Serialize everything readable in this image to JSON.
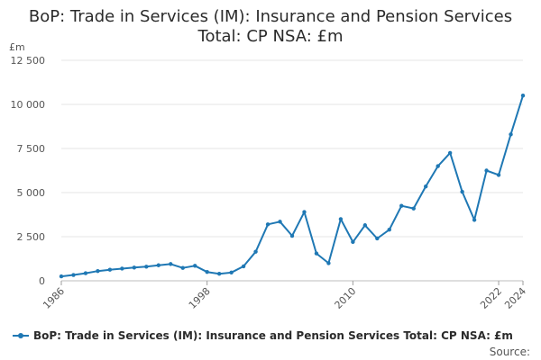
{
  "chart_data": {
    "type": "line",
    "title_lines": [
      "BoP: Trade in Services (IM): Insurance and Pension Services",
      "Total: CP NSA: £m"
    ],
    "y_unit": "£m",
    "ylim": [
      0,
      12500
    ],
    "y_ticks": [
      0,
      2500,
      5000,
      7500,
      10000,
      12500
    ],
    "y_tick_labels": [
      "0",
      "2 500",
      "5 000",
      "7 500",
      "10 000",
      "12 500"
    ],
    "xlim": [
      1986,
      2024
    ],
    "x_ticks": [
      1986,
      1998,
      2010,
      2022,
      2024
    ],
    "x_tick_labels": [
      "1986",
      "1998",
      "2010",
      "2022",
      "2024"
    ],
    "grid": "horizontal",
    "legend_position": "bottom-left",
    "series": [
      {
        "name": "BoP: Trade in Services (IM): Insurance and Pension Services Total: CP NSA: £m",
        "color": "#1f78b4",
        "x": [
          1986,
          1987,
          1988,
          1989,
          1990,
          1991,
          1992,
          1993,
          1994,
          1995,
          1996,
          1997,
          1998,
          1999,
          2000,
          2001,
          2002,
          2003,
          2004,
          2005,
          2006,
          2007,
          2008,
          2009,
          2010,
          2011,
          2012,
          2013,
          2014,
          2015,
          2016,
          2017,
          2018,
          2019,
          2020,
          2021,
          2022,
          2023,
          2024
        ],
        "values": [
          250,
          330,
          430,
          550,
          630,
          690,
          750,
          800,
          880,
          950,
          730,
          850,
          500,
          400,
          470,
          820,
          1650,
          3200,
          3350,
          2550,
          3900,
          1550,
          1000,
          3500,
          2200,
          3150,
          2400,
          2900,
          4250,
          4100,
          5350,
          6500,
          7250,
          5050,
          3450,
          6250,
          6000,
          8300,
          10500
        ]
      }
    ]
  },
  "legend": {
    "label": "BoP: Trade in Services (IM): Insurance and Pension Services Total: CP NSA: £m"
  },
  "source_label": "Source:"
}
